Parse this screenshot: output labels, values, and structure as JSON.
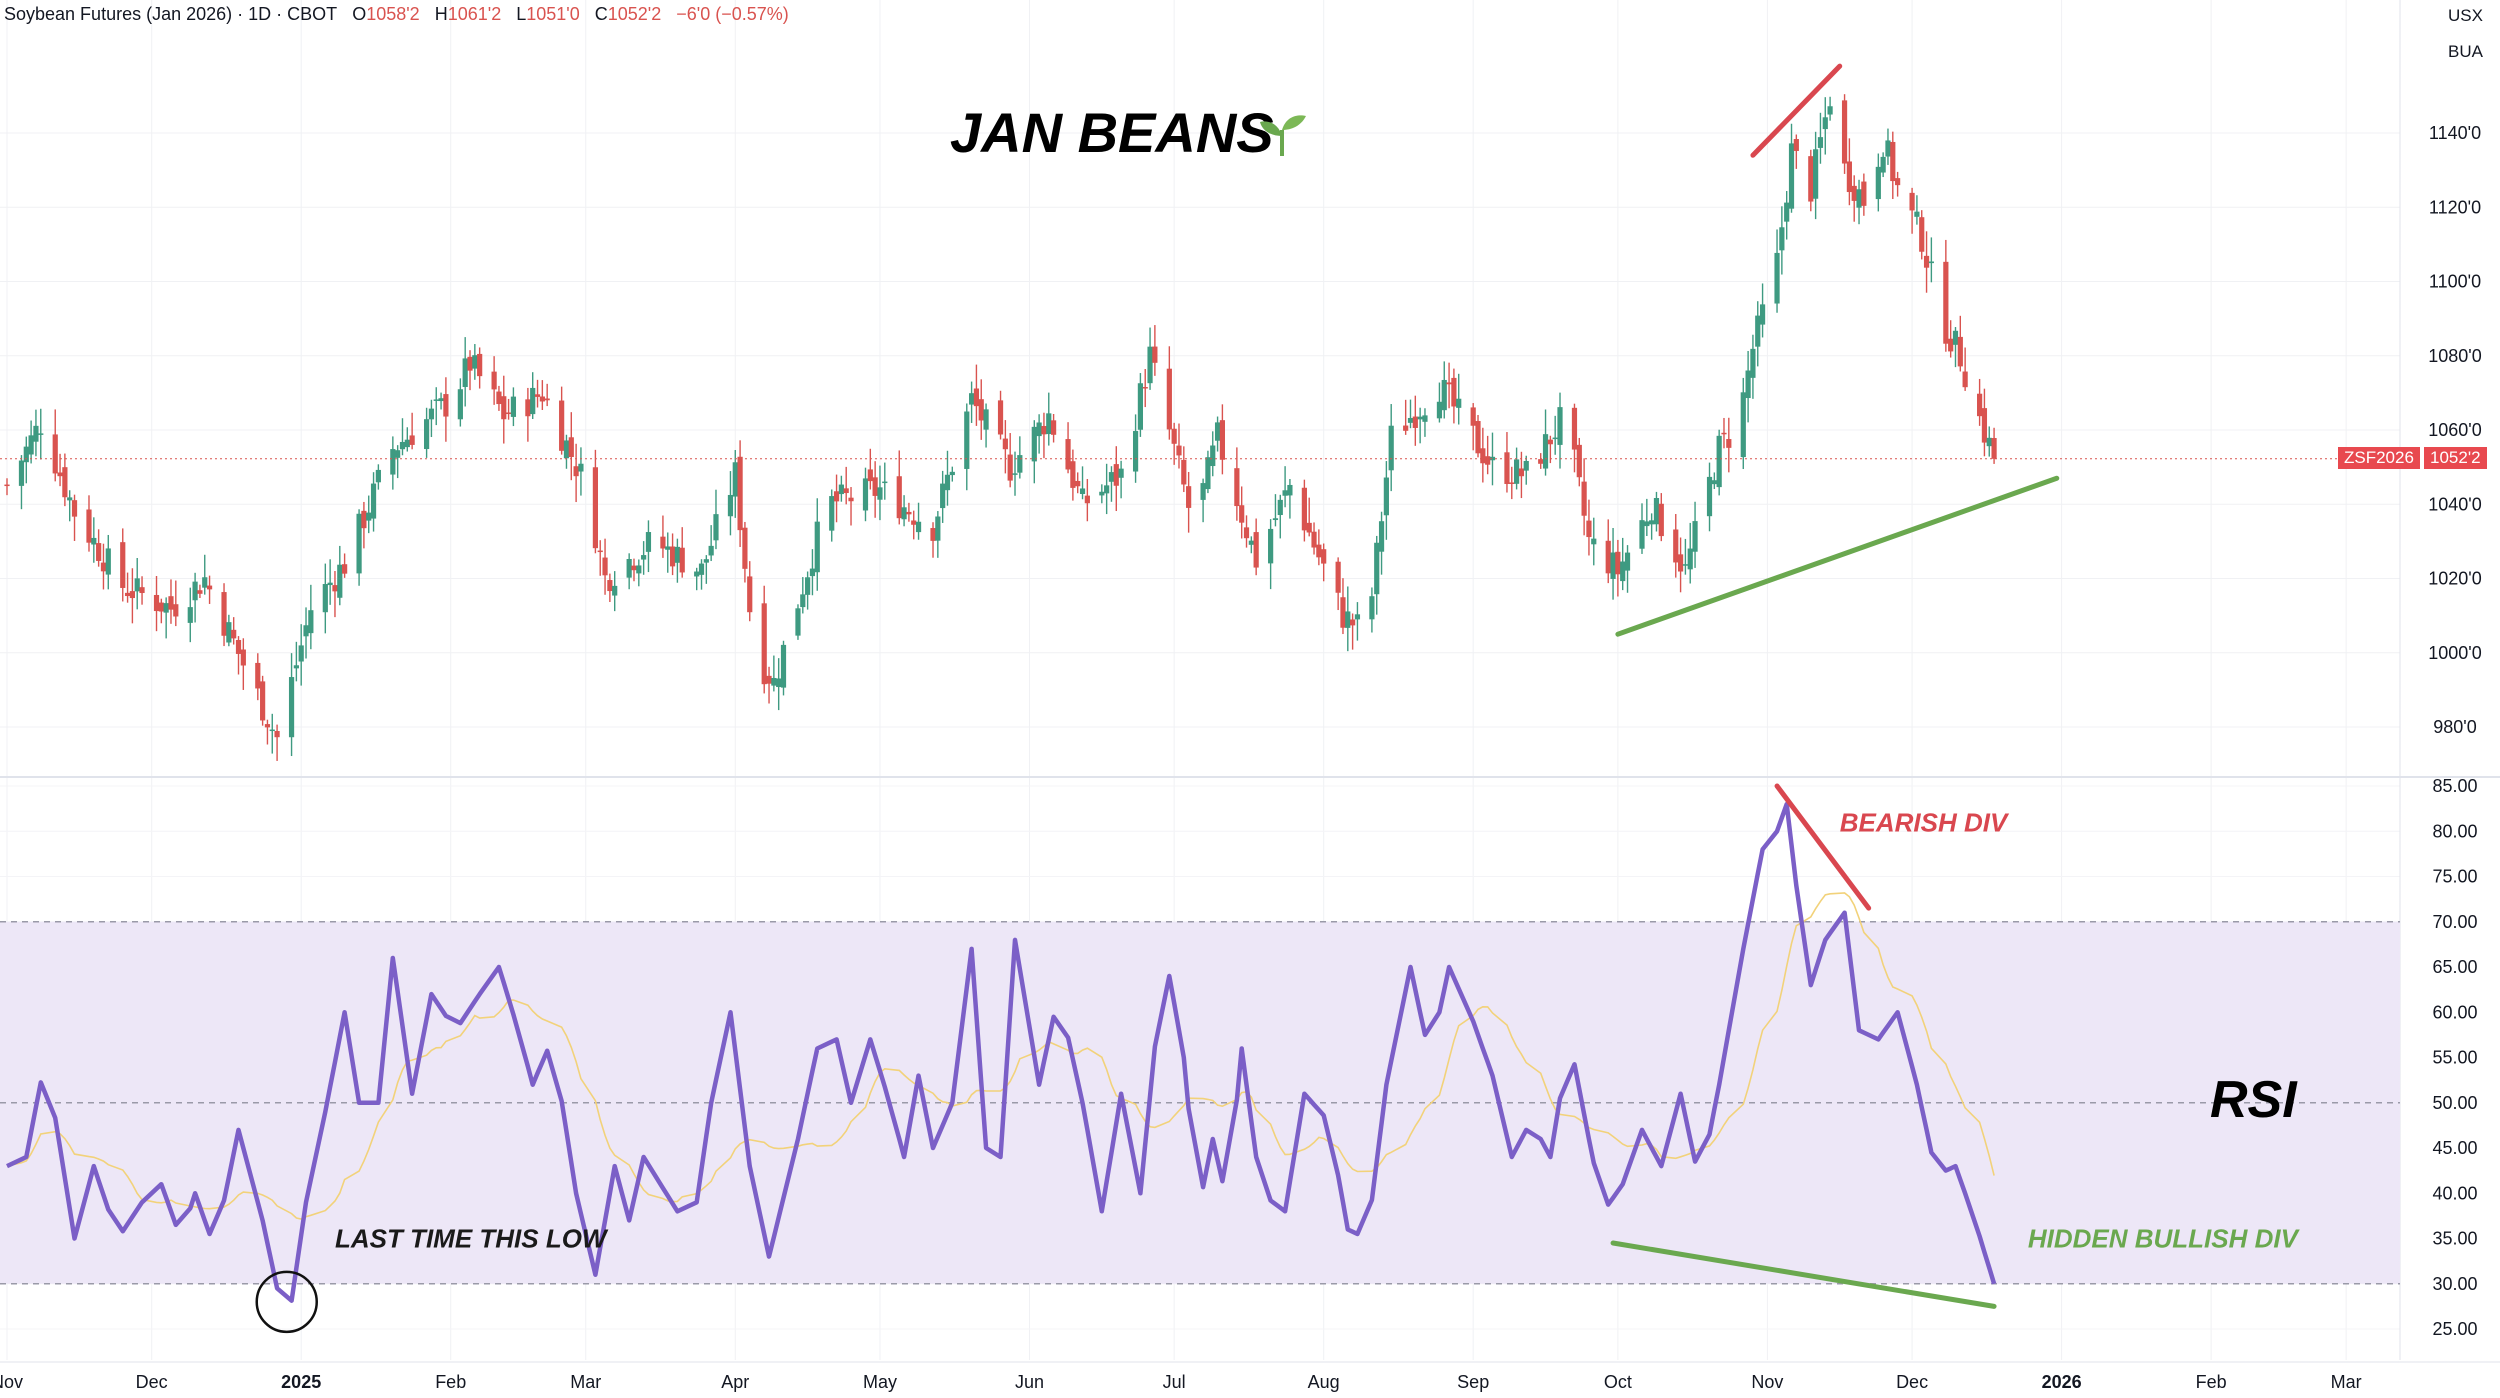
{
  "header": {
    "symbol_name": "Soybean Futures (Jan 2026)",
    "interval": "1D",
    "exchange": "CBOT",
    "o_label": "O",
    "o_value": "1058'2",
    "h_label": "H",
    "h_value": "1061'2",
    "l_label": "L",
    "l_value": "1051'0",
    "c_label": "C",
    "c_value": "1052'2",
    "change": "−6'0 (−0.57%)",
    "currency": "USX",
    "unit": "BUA"
  },
  "price_tag": {
    "symbol": "ZSF2026",
    "value": "1052'2"
  },
  "colors": {
    "up": "#3e9a81",
    "down": "#d9534f",
    "rsi": "#7b5fc7",
    "rsi_ma": "#f2d27a",
    "rsi_band": "#ede7f7",
    "bearish": "#d9474f",
    "bullish": "#6aa84f"
  },
  "chart_data": [
    {
      "type": "candlestick",
      "title": "JAN BEANS",
      "title_icon": "sprout-icon",
      "y_range": [
        970,
        1160
      ],
      "y_ticks": [
        980,
        1000,
        1020,
        1040,
        1060,
        1080,
        1100,
        1120,
        1140
      ],
      "y_tick_labels": [
        "980'0",
        "1000'0",
        "1020'0",
        "1040'0",
        "1060'0",
        "1080'0",
        "1100'0",
        "1120'0",
        "1140'0"
      ],
      "last_price": 1052.25,
      "x_labels": [
        "Nov",
        "Dec",
        "2025",
        "Feb",
        "Mar",
        "Apr",
        "May",
        "Jun",
        "Jul",
        "Aug",
        "Sep",
        "Oct",
        "Nov",
        "Dec",
        "2026",
        "Feb",
        "Mar"
      ],
      "x_label_dates": [
        "2024-11-01",
        "2024-12-01",
        "2025-01-01",
        "2025-02-01",
        "2025-03-01",
        "2025-04-01",
        "2025-05-01",
        "2025-06-01",
        "2025-07-01",
        "2025-08-01",
        "2025-09-01",
        "2025-10-01",
        "2025-11-01",
        "2025-12-01",
        "2026-01-01",
        "2026-02-01",
        "2026-03-01"
      ],
      "bold_x_labels": [
        "2025",
        "2026"
      ],
      "close_anchors": [
        {
          "date": "2024-11-01",
          "close": 1045
        },
        {
          "date": "2024-11-08",
          "close": 1062
        },
        {
          "date": "2024-11-15",
          "close": 1038
        },
        {
          "date": "2024-11-25",
          "close": 1018
        },
        {
          "date": "2024-12-05",
          "close": 1012
        },
        {
          "date": "2024-12-12",
          "close": 1020
        },
        {
          "date": "2024-12-20",
          "close": 997
        },
        {
          "date": "2024-12-27",
          "close": 977
        },
        {
          "date": "2025-01-03",
          "close": 1012
        },
        {
          "date": "2025-01-10",
          "close": 1024
        },
        {
          "date": "2025-01-20",
          "close": 1055
        },
        {
          "date": "2025-02-01",
          "close": 1068
        },
        {
          "date": "2025-02-05",
          "close": 1078
        },
        {
          "date": "2025-02-12",
          "close": 1064
        },
        {
          "date": "2025-02-20",
          "close": 1070
        },
        {
          "date": "2025-03-01",
          "close": 1045
        },
        {
          "date": "2025-03-05",
          "close": 1020
        },
        {
          "date": "2025-03-15",
          "close": 1030
        },
        {
          "date": "2025-03-25",
          "close": 1022
        },
        {
          "date": "2025-04-01",
          "close": 1048
        },
        {
          "date": "2025-04-05",
          "close": 1000
        },
        {
          "date": "2025-04-09",
          "close": 992
        },
        {
          "date": "2025-04-20",
          "close": 1040
        },
        {
          "date": "2025-05-01",
          "close": 1044
        },
        {
          "date": "2025-05-12",
          "close": 1034
        },
        {
          "date": "2025-05-20",
          "close": 1068
        },
        {
          "date": "2025-05-28",
          "close": 1050
        },
        {
          "date": "2025-06-05",
          "close": 1064
        },
        {
          "date": "2025-06-12",
          "close": 1040
        },
        {
          "date": "2025-06-20",
          "close": 1048
        },
        {
          "date": "2025-06-26",
          "close": 1080
        },
        {
          "date": "2025-07-05",
          "close": 1034
        },
        {
          "date": "2025-07-10",
          "close": 1058
        },
        {
          "date": "2025-07-18",
          "close": 1025
        },
        {
          "date": "2025-07-25",
          "close": 1045
        },
        {
          "date": "2025-08-05",
          "close": 1010
        },
        {
          "date": "2025-08-10",
          "close": 1005
        },
        {
          "date": "2025-08-15",
          "close": 1058
        },
        {
          "date": "2025-08-25",
          "close": 1072
        },
        {
          "date": "2025-09-05",
          "close": 1050
        },
        {
          "date": "2025-09-12",
          "close": 1048
        },
        {
          "date": "2025-09-20",
          "close": 1064
        },
        {
          "date": "2025-09-25",
          "close": 1030
        },
        {
          "date": "2025-10-01",
          "close": 1022
        },
        {
          "date": "2025-10-08",
          "close": 1040
        },
        {
          "date": "2025-10-15",
          "close": 1022
        },
        {
          "date": "2025-10-22",
          "close": 1055
        },
        {
          "date": "2025-10-26",
          "close": 1062
        },
        {
          "date": "2025-10-29",
          "close": 1082
        },
        {
          "date": "2025-11-03",
          "close": 1105
        },
        {
          "date": "2025-11-06",
          "close": 1135
        },
        {
          "date": "2025-11-10",
          "close": 1125
        },
        {
          "date": "2025-11-14",
          "close": 1150
        },
        {
          "date": "2025-11-17",
          "close": 1130
        },
        {
          "date": "2025-11-21",
          "close": 1122
        },
        {
          "date": "2025-11-25",
          "close": 1138
        },
        {
          "date": "2025-11-28",
          "close": 1125
        },
        {
          "date": "2025-12-03",
          "close": 1112
        },
        {
          "date": "2025-12-07",
          "close": 1090
        },
        {
          "date": "2025-12-11",
          "close": 1080
        },
        {
          "date": "2025-12-15",
          "close": 1063
        },
        {
          "date": "2025-12-18",
          "close": 1052.25
        }
      ],
      "trendlines": [
        {
          "name": "price-high-trendline",
          "color": "bearish",
          "from": {
            "date": "2025-10-29",
            "value": 1134
          },
          "to": {
            "date": "2025-11-16",
            "value": 1158
          }
        },
        {
          "name": "price-support-trendline",
          "color": "bullish",
          "from": {
            "date": "2025-10-01",
            "value": 1005
          },
          "to": {
            "date": "2025-12-31",
            "value": 1047
          }
        }
      ]
    },
    {
      "type": "line",
      "title": "RSI",
      "y_range": [
        22,
        85
      ],
      "y_ticks": [
        25,
        30,
        35,
        40,
        45,
        50,
        55,
        60,
        65,
        70,
        75,
        80,
        85
      ],
      "y_tick_labels": [
        "25.00",
        "30.00",
        "35.00",
        "40.00",
        "45.00",
        "50.00",
        "55.00",
        "60.00",
        "65.00",
        "70.00",
        "75.00",
        "80.00",
        "85.00"
      ],
      "overbought": 70,
      "midline": 50,
      "oversold": 30,
      "rsi_anchors": [
        {
          "date": "2024-11-01",
          "value": 43
        },
        {
          "date": "2024-11-05",
          "value": 44
        },
        {
          "date": "2024-11-09",
          "value": 55
        },
        {
          "date": "2024-11-15",
          "value": 35
        },
        {
          "date": "2024-11-19",
          "value": 43
        },
        {
          "date": "2024-11-24",
          "value": 35
        },
        {
          "date": "2024-11-29",
          "value": 39
        },
        {
          "date": "2024-12-03",
          "value": 41
        },
        {
          "date": "2024-12-07",
          "value": 35
        },
        {
          "date": "2024-12-10",
          "value": 40
        },
        {
          "date": "2024-12-14",
          "value": 34
        },
        {
          "date": "2024-12-19",
          "value": 47
        },
        {
          "date": "2024-12-24",
          "value": 37
        },
        {
          "date": "2024-12-29",
          "value": 24.5
        },
        {
          "date": "2025-01-02",
          "value": 39
        },
        {
          "date": "2025-01-06",
          "value": 49
        },
        {
          "date": "2025-01-10",
          "value": 60
        },
        {
          "date": "2025-01-13",
          "value": 50
        },
        {
          "date": "2025-01-17",
          "value": 50
        },
        {
          "date": "2025-01-20",
          "value": 66
        },
        {
          "date": "2025-01-24",
          "value": 51
        },
        {
          "date": "2025-01-28",
          "value": 62
        },
        {
          "date": "2025-02-02",
          "value": 58
        },
        {
          "date": "2025-02-07",
          "value": 62
        },
        {
          "date": "2025-02-11",
          "value": 65
        },
        {
          "date": "2025-02-15",
          "value": 58
        },
        {
          "date": "2025-02-18",
          "value": 52
        },
        {
          "date": "2025-02-22",
          "value": 57
        },
        {
          "date": "2025-02-27",
          "value": 40
        },
        {
          "date": "2025-03-03",
          "value": 31
        },
        {
          "date": "2025-03-07",
          "value": 43
        },
        {
          "date": "2025-03-10",
          "value": 37
        },
        {
          "date": "2025-03-13",
          "value": 44
        },
        {
          "date": "2025-03-20",
          "value": 38
        },
        {
          "date": "2025-03-24",
          "value": 39
        },
        {
          "date": "2025-03-27",
          "value": 50
        },
        {
          "date": "2025-03-31",
          "value": 60
        },
        {
          "date": "2025-04-04",
          "value": 43
        },
        {
          "date": "2025-04-08",
          "value": 33
        },
        {
          "date": "2025-04-14",
          "value": 46
        },
        {
          "date": "2025-04-18",
          "value": 56
        },
        {
          "date": "2025-04-22",
          "value": 57
        },
        {
          "date": "2025-04-25",
          "value": 50
        },
        {
          "date": "2025-04-29",
          "value": 57
        },
        {
          "date": "2025-05-03",
          "value": 50
        },
        {
          "date": "2025-05-06",
          "value": 44
        },
        {
          "date": "2025-05-09",
          "value": 53
        },
        {
          "date": "2025-05-12",
          "value": 45
        },
        {
          "date": "2025-05-16",
          "value": 50
        },
        {
          "date": "2025-05-20",
          "value": 67
        },
        {
          "date": "2025-05-23",
          "value": 45
        },
        {
          "date": "2025-05-26",
          "value": 44
        },
        {
          "date": "2025-05-29",
          "value": 68
        },
        {
          "date": "2025-06-03",
          "value": 52
        },
        {
          "date": "2025-06-07",
          "value": 62
        },
        {
          "date": "2025-06-12",
          "value": 50
        },
        {
          "date": "2025-06-16",
          "value": 38
        },
        {
          "date": "2025-06-20",
          "value": 51
        },
        {
          "date": "2025-06-24",
          "value": 40
        },
        {
          "date": "2025-06-29",
          "value": 67
        },
        {
          "date": "2025-07-03",
          "value": 55
        },
        {
          "date": "2025-07-06",
          "value": 38
        },
        {
          "date": "2025-07-09",
          "value": 46
        },
        {
          "date": "2025-07-12",
          "value": 39
        },
        {
          "date": "2025-07-15",
          "value": 56
        },
        {
          "date": "2025-07-19",
          "value": 40
        },
        {
          "date": "2025-07-24",
          "value": 38
        },
        {
          "date": "2025-07-28",
          "value": 51
        },
        {
          "date": "2025-08-02",
          "value": 48
        },
        {
          "date": "2025-08-06",
          "value": 36
        },
        {
          "date": "2025-08-10",
          "value": 35
        },
        {
          "date": "2025-08-14",
          "value": 52
        },
        {
          "date": "2025-08-19",
          "value": 65
        },
        {
          "date": "2025-08-23",
          "value": 55
        },
        {
          "date": "2025-08-27",
          "value": 65
        },
        {
          "date": "2025-09-01",
          "value": 59
        },
        {
          "date": "2025-09-05",
          "value": 53
        },
        {
          "date": "2025-09-09",
          "value": 44
        },
        {
          "date": "2025-09-13",
          "value": 48
        },
        {
          "date": "2025-09-17",
          "value": 44
        },
        {
          "date": "2025-09-21",
          "value": 57
        },
        {
          "date": "2025-09-25",
          "value": 46
        },
        {
          "date": "2025-09-28",
          "value": 38
        },
        {
          "date": "2025-10-02",
          "value": 41
        },
        {
          "date": "2025-10-06",
          "value": 47
        },
        {
          "date": "2025-10-10",
          "value": 43
        },
        {
          "date": "2025-10-14",
          "value": 51
        },
        {
          "date": "2025-10-18",
          "value": 41
        },
        {
          "date": "2025-10-22",
          "value": 52
        },
        {
          "date": "2025-10-27",
          "value": 67
        },
        {
          "date": "2025-10-31",
          "value": 78
        },
        {
          "date": "2025-11-03",
          "value": 80
        },
        {
          "date": "2025-11-05",
          "value": 83
        },
        {
          "date": "2025-11-07",
          "value": 74
        },
        {
          "date": "2025-11-10",
          "value": 63
        },
        {
          "date": "2025-11-13",
          "value": 68
        },
        {
          "date": "2025-11-17",
          "value": 71
        },
        {
          "date": "2025-11-20",
          "value": 58
        },
        {
          "date": "2025-11-24",
          "value": 57
        },
        {
          "date": "2025-11-28",
          "value": 60
        },
        {
          "date": "2025-12-02",
          "value": 52
        },
        {
          "date": "2025-12-06",
          "value": 42
        },
        {
          "date": "2025-12-10",
          "value": 43
        },
        {
          "date": "2025-12-14",
          "value": 37
        },
        {
          "date": "2025-12-18",
          "value": 30
        }
      ],
      "annotations": [
        {
          "name": "bearish-div-label",
          "text": "BEARISH DIV",
          "color": "bearish",
          "date": "2025-11-16",
          "value": 80
        },
        {
          "name": "hidden-bullish-div-label",
          "text": "HIDDEN BULLISH DIV",
          "color": "bullish",
          "date": "2025-12-25",
          "value": 34
        },
        {
          "name": "last-time-this-low-label",
          "text": "LAST TIME THIS LOW",
          "color": "dark",
          "date": "2025-01-08",
          "value": 34
        }
      ],
      "trendlines": [
        {
          "name": "rsi-bearish-trendline",
          "color": "bearish",
          "from": {
            "date": "2025-11-03",
            "value": 85
          },
          "to": {
            "date": "2025-11-22",
            "value": 71.5
          }
        },
        {
          "name": "rsi-bullish-trendline",
          "color": "bullish",
          "from": {
            "date": "2025-09-30",
            "value": 34.5
          },
          "to": {
            "date": "2025-12-18",
            "value": 27.5
          }
        }
      ],
      "low_marker": {
        "date": "2024-12-29",
        "value": 28
      }
    }
  ]
}
